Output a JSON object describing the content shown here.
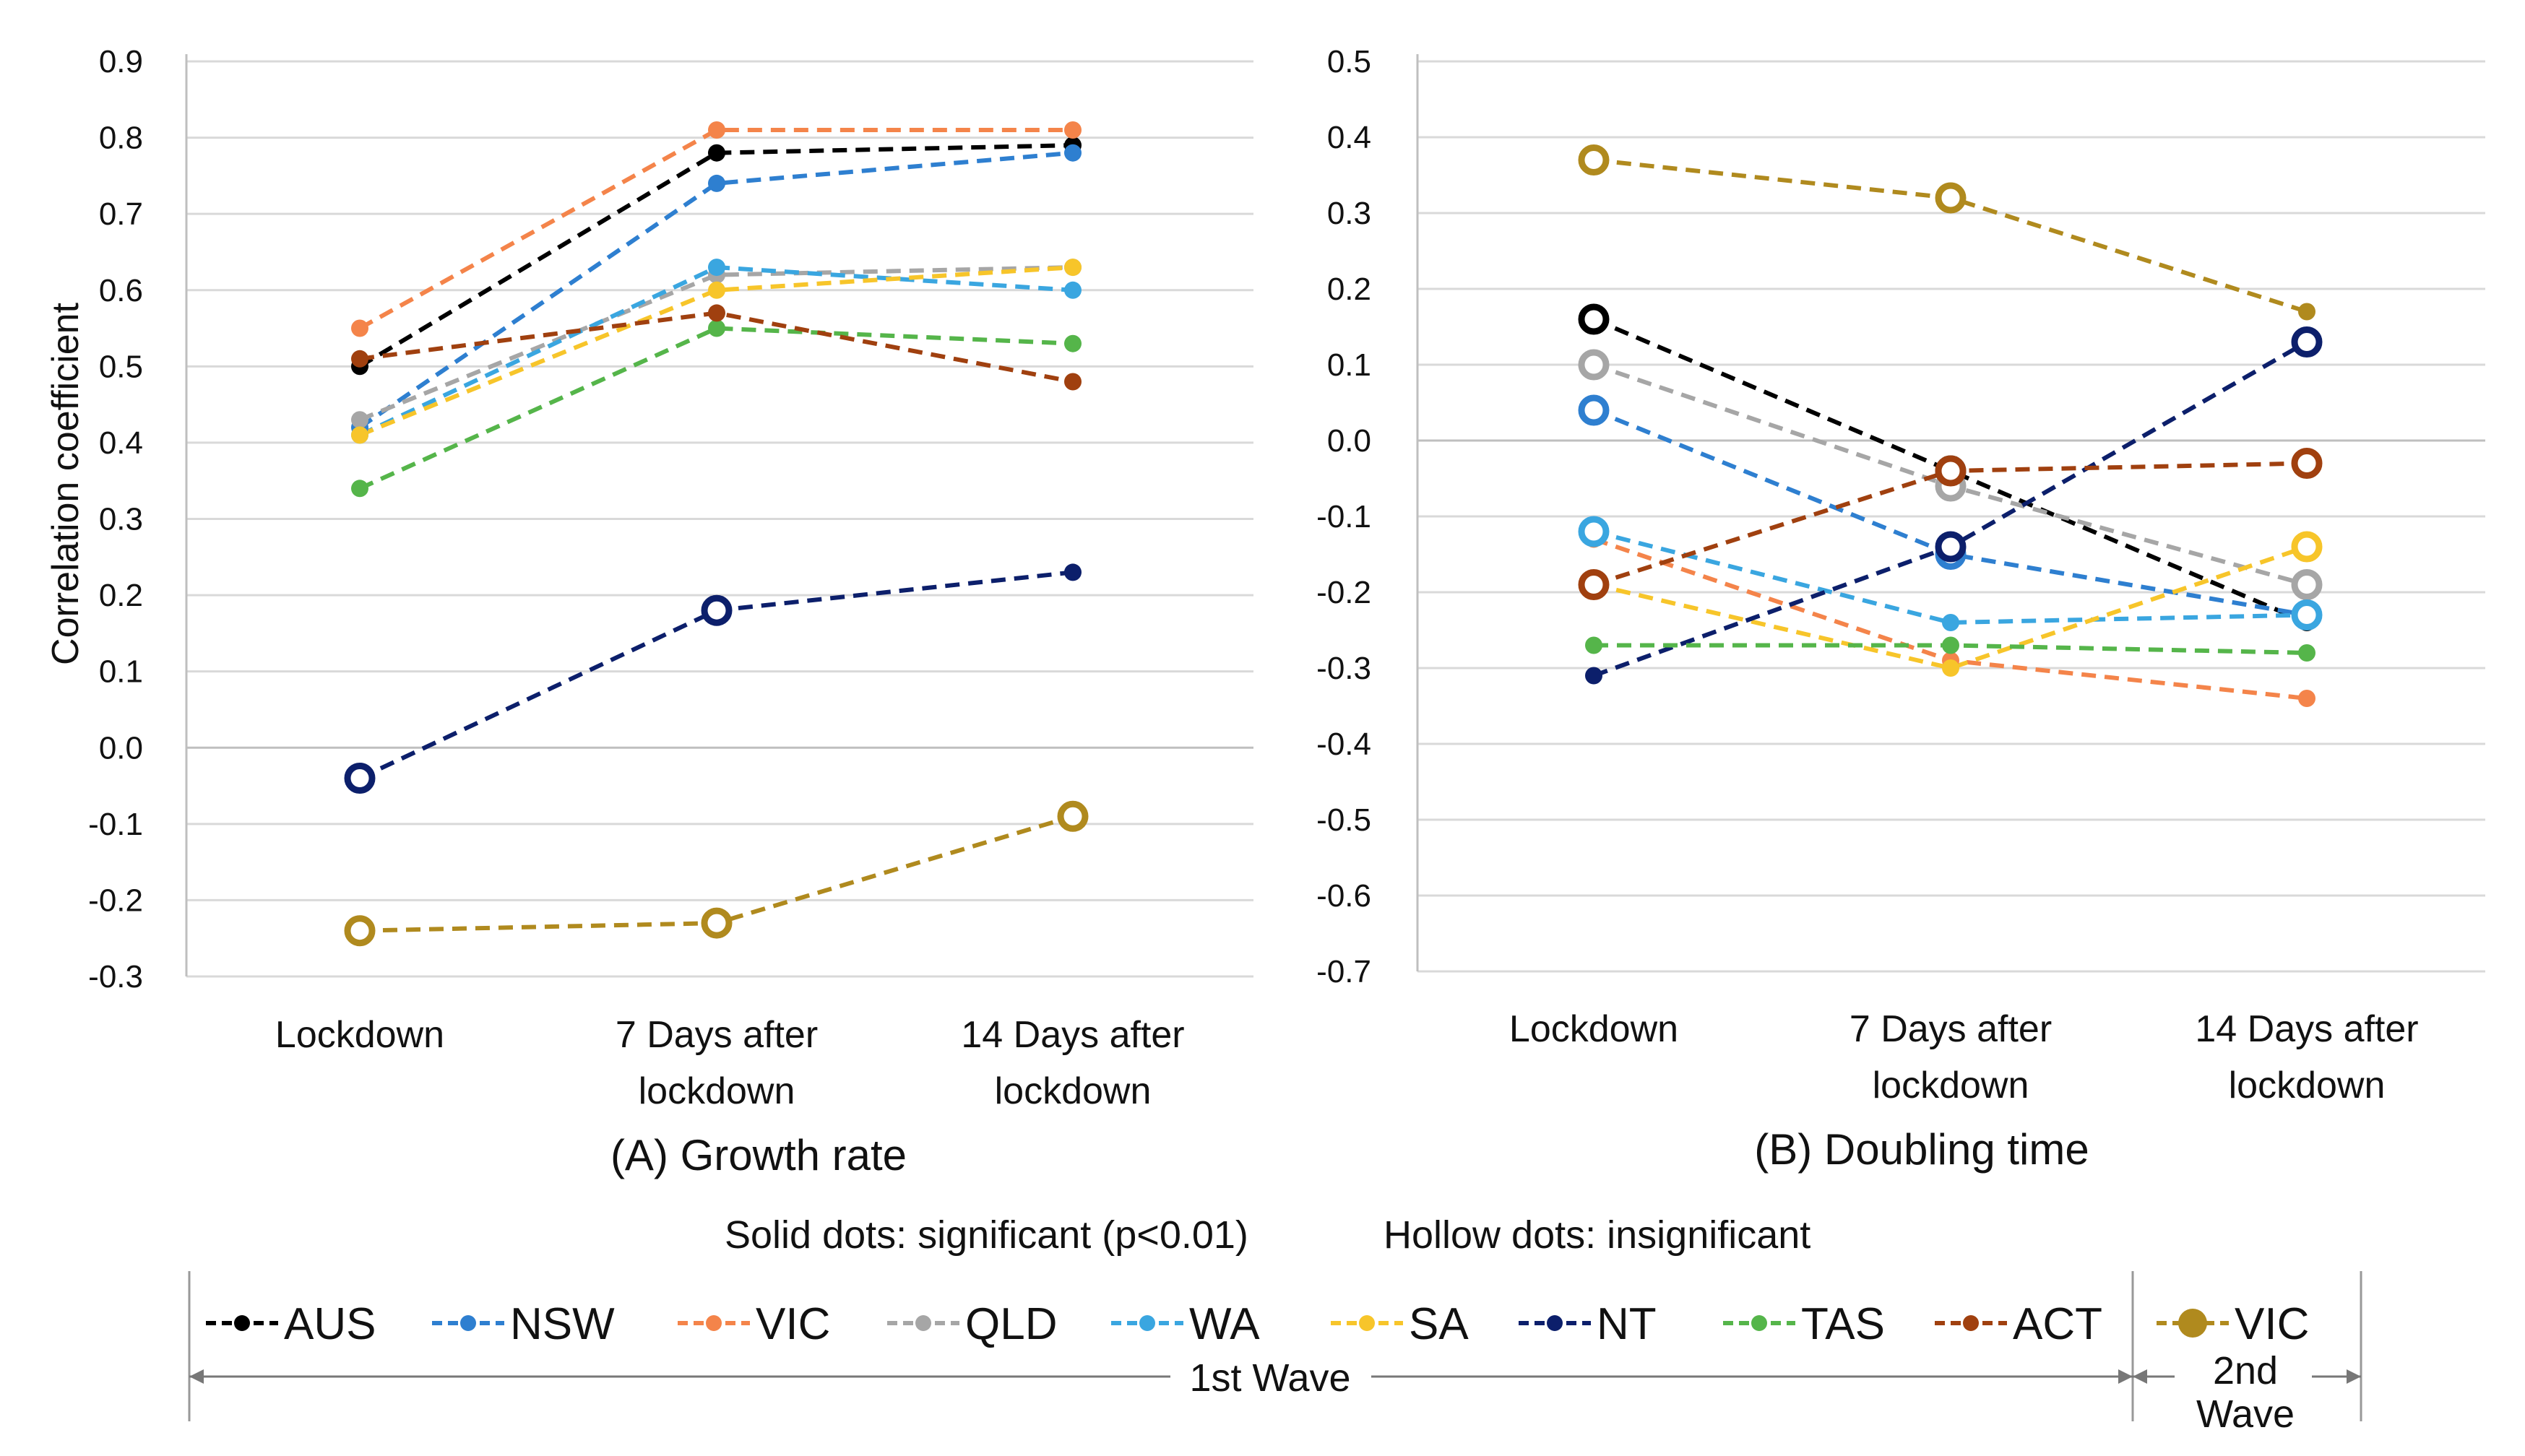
{
  "notes": {
    "solid": "Solid dots: significant (p<0.01)",
    "hollow": "Hollow dots: insignificant"
  },
  "legend": {
    "items": [
      {
        "label": "AUS",
        "color": "#000000",
        "hollow": false
      },
      {
        "label": "NSW",
        "color": "#2e7fd0",
        "hollow": false
      },
      {
        "label": "VIC",
        "color": "#f4844a",
        "hollow": false
      },
      {
        "label": "QLD",
        "color": "#a6a6a6",
        "hollow": false
      },
      {
        "label": "WA",
        "color": "#3aa6e0",
        "hollow": false
      },
      {
        "label": "SA",
        "color": "#f7c52a",
        "hollow": false
      },
      {
        "label": "NT",
        "color": "#0c1f6b",
        "hollow": false
      },
      {
        "label": "TAS",
        "color": "#55b54a",
        "hollow": false
      },
      {
        "label": "ACT",
        "color": "#a0400f",
        "hollow": false
      },
      {
        "label": "VIC",
        "color": "#b08a1e",
        "hollow": false
      }
    ],
    "wave1": "1st Wave",
    "wave2_line1": "2nd",
    "wave2_line2": "Wave"
  },
  "chart_data": [
    {
      "type": "line",
      "title": "(A) Growth rate",
      "ylabel": "Correlation coefficient",
      "xlabel": "",
      "ylim": [
        -0.3,
        0.9
      ],
      "yticks": [
        "0.9",
        "0.8",
        "0.7",
        "0.6",
        "0.5",
        "0.4",
        "0.3",
        "0.2",
        "0.1",
        "0.0",
        "-0.1",
        "-0.2",
        "-0.3"
      ],
      "categories": [
        [
          "Lockdown"
        ],
        [
          "7 Days after",
          "lockdown"
        ],
        [
          "14 Days after",
          "lockdown"
        ]
      ],
      "series": [
        {
          "name": "AUS",
          "wave": "1st Wave",
          "color": "#000000",
          "values": [
            0.5,
            0.78,
            0.79
          ],
          "significant": [
            true,
            true,
            true
          ]
        },
        {
          "name": "NSW",
          "wave": "1st Wave",
          "color": "#2e7fd0",
          "values": [
            0.42,
            0.74,
            0.78
          ],
          "significant": [
            true,
            true,
            true
          ]
        },
        {
          "name": "VIC",
          "wave": "1st Wave",
          "color": "#f4844a",
          "values": [
            0.55,
            0.81,
            0.81
          ],
          "significant": [
            true,
            true,
            true
          ]
        },
        {
          "name": "QLD",
          "wave": "1st Wave",
          "color": "#a6a6a6",
          "values": [
            0.43,
            0.62,
            0.63
          ],
          "significant": [
            true,
            true,
            true
          ]
        },
        {
          "name": "WA",
          "wave": "1st Wave",
          "color": "#3aa6e0",
          "values": [
            0.41,
            0.63,
            0.6
          ],
          "significant": [
            true,
            true,
            true
          ]
        },
        {
          "name": "SA",
          "wave": "1st Wave",
          "color": "#f7c52a",
          "values": [
            0.41,
            0.6,
            0.63
          ],
          "significant": [
            true,
            true,
            true
          ]
        },
        {
          "name": "NT",
          "wave": "1st Wave",
          "color": "#0c1f6b",
          "values": [
            -0.04,
            0.18,
            0.23
          ],
          "significant": [
            false,
            false,
            true
          ]
        },
        {
          "name": "TAS",
          "wave": "1st Wave",
          "color": "#55b54a",
          "values": [
            0.34,
            0.55,
            0.53
          ],
          "significant": [
            true,
            true,
            true
          ]
        },
        {
          "name": "ACT",
          "wave": "1st Wave",
          "color": "#a0400f",
          "values": [
            0.51,
            0.57,
            0.48
          ],
          "significant": [
            true,
            true,
            true
          ]
        },
        {
          "name": "VIC",
          "wave": "2nd Wave",
          "color": "#b08a1e",
          "values": [
            -0.24,
            -0.23,
            -0.09
          ],
          "significant": [
            false,
            false,
            false
          ]
        }
      ]
    },
    {
      "type": "line",
      "title": "(B) Doubling time",
      "ylabel": "",
      "xlabel": "",
      "ylim": [
        -0.7,
        0.5
      ],
      "yticks": [
        "0.5",
        "0.4",
        "0.3",
        "0.2",
        "0.1",
        "0.0",
        "-0.1",
        "-0.2",
        "-0.3",
        "-0.4",
        "-0.5",
        "-0.6",
        "-0.7"
      ],
      "categories": [
        [
          "Lockdown"
        ],
        [
          "7 Days after",
          "lockdown"
        ],
        [
          "14 Days after",
          "lockdown"
        ]
      ],
      "series": [
        {
          "name": "AUS",
          "wave": "1st Wave",
          "color": "#000000",
          "values": [
            0.16,
            -0.04,
            -0.24
          ],
          "significant": [
            false,
            false,
            true
          ]
        },
        {
          "name": "NSW",
          "wave": "1st Wave",
          "color": "#2e7fd0",
          "values": [
            0.04,
            -0.15,
            -0.23
          ],
          "significant": [
            false,
            false,
            true
          ]
        },
        {
          "name": "VIC",
          "wave": "1st Wave",
          "color": "#f4844a",
          "values": [
            -0.13,
            -0.29,
            -0.34
          ],
          "significant": [
            true,
            true,
            true
          ]
        },
        {
          "name": "QLD",
          "wave": "1st Wave",
          "color": "#a6a6a6",
          "values": [
            0.1,
            -0.06,
            -0.19
          ],
          "significant": [
            false,
            false,
            false
          ]
        },
        {
          "name": "WA",
          "wave": "1st Wave",
          "color": "#3aa6e0",
          "values": [
            -0.12,
            -0.24,
            -0.23
          ],
          "significant": [
            false,
            true,
            false
          ]
        },
        {
          "name": "SA",
          "wave": "1st Wave",
          "color": "#f7c52a",
          "values": [
            -0.19,
            -0.3,
            -0.14
          ],
          "significant": [
            true,
            true,
            false
          ]
        },
        {
          "name": "NT",
          "wave": "1st Wave",
          "color": "#0c1f6b",
          "values": [
            -0.31,
            -0.14,
            0.13
          ],
          "significant": [
            true,
            false,
            false
          ]
        },
        {
          "name": "TAS",
          "wave": "1st Wave",
          "color": "#55b54a",
          "values": [
            -0.27,
            -0.27,
            -0.28
          ],
          "significant": [
            true,
            true,
            true
          ]
        },
        {
          "name": "ACT",
          "wave": "1st Wave",
          "color": "#a0400f",
          "values": [
            -0.19,
            -0.04,
            -0.03
          ],
          "significant": [
            false,
            false,
            false
          ]
        },
        {
          "name": "VIC",
          "wave": "2nd Wave",
          "color": "#b08a1e",
          "values": [
            0.37,
            0.32,
            0.17
          ],
          "significant": [
            false,
            false,
            true
          ]
        }
      ]
    }
  ]
}
